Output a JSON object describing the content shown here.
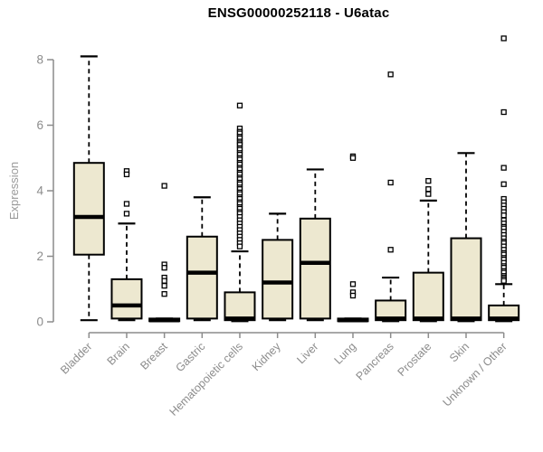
{
  "chart_data": {
    "type": "boxplot",
    "title": "ENSG00000252118 - U6atac",
    "ylabel": "Expression",
    "xlabel": "",
    "yticks": [
      0,
      2,
      4,
      6,
      8
    ],
    "ylim": [
      0,
      8.8
    ],
    "grid": false,
    "legend": "none",
    "categories": [
      "Bladder",
      "Brain",
      "Breast",
      "Gastric",
      "Hematopoietic cells",
      "Kidney",
      "Liver",
      "Lung",
      "Pancreas",
      "Prostate",
      "Skin",
      "Unknown / Other"
    ],
    "series": [
      {
        "name": "Bladder",
        "low": 0.05,
        "q1": 2.05,
        "median": 3.2,
        "q3": 4.85,
        "high": 8.1,
        "outliers": []
      },
      {
        "name": "Brain",
        "low": 0.05,
        "q1": 0.1,
        "median": 0.5,
        "q3": 1.3,
        "high": 3.0,
        "outliers": [
          4.6,
          4.5,
          3.6,
          3.3
        ]
      },
      {
        "name": "Breast",
        "low": 0.02,
        "q1": 0.02,
        "median": 0.05,
        "q3": 0.1,
        "high": 0.1,
        "outliers": [
          4.15,
          1.75,
          1.65,
          1.35,
          1.25,
          1.1,
          0.85
        ]
      },
      {
        "name": "Gastric",
        "low": 0.05,
        "q1": 0.1,
        "median": 1.5,
        "q3": 2.6,
        "high": 3.8,
        "outliers": []
      },
      {
        "name": "Hematopoietic cells",
        "low": 0.02,
        "q1": 0.05,
        "median": 0.1,
        "q3": 0.9,
        "high": 2.15,
        "outliers": [
          6.6,
          5.9,
          5.8,
          5.75,
          5.65,
          5.6,
          5.5,
          5.45,
          5.4,
          5.3,
          5.25,
          5.15,
          5.1,
          5.0,
          4.95,
          4.85,
          4.8,
          4.7,
          4.65,
          4.55,
          4.5,
          4.4,
          4.35,
          4.25,
          4.2,
          4.1,
          4.05,
          3.95,
          3.9,
          3.8,
          3.75,
          3.65,
          3.6,
          3.5,
          3.45,
          3.35,
          3.3,
          3.2,
          3.1,
          3.0,
          2.9,
          2.8,
          2.7,
          2.6,
          2.5,
          2.4,
          2.3
        ]
      },
      {
        "name": "Kidney",
        "low": 0.05,
        "q1": 0.1,
        "median": 1.2,
        "q3": 2.5,
        "high": 3.3,
        "outliers": []
      },
      {
        "name": "Liver",
        "low": 0.05,
        "q1": 0.1,
        "median": 1.8,
        "q3": 3.15,
        "high": 4.65,
        "outliers": []
      },
      {
        "name": "Lung",
        "low": 0.02,
        "q1": 0.02,
        "median": 0.05,
        "q3": 0.1,
        "high": 0.1,
        "outliers": [
          5.05,
          5.0,
          1.15,
          0.9,
          0.8
        ]
      },
      {
        "name": "Pancreas",
        "low": 0.02,
        "q1": 0.05,
        "median": 0.1,
        "q3": 0.65,
        "high": 1.35,
        "outliers": [
          7.55,
          4.25,
          2.2
        ]
      },
      {
        "name": "Prostate",
        "low": 0.02,
        "q1": 0.05,
        "median": 0.1,
        "q3": 1.5,
        "high": 3.7,
        "outliers": [
          4.3,
          4.05,
          3.9
        ]
      },
      {
        "name": "Skin",
        "low": 0.02,
        "q1": 0.05,
        "median": 0.1,
        "q3": 2.55,
        "high": 5.15,
        "outliers": []
      },
      {
        "name": "Unknown / Other",
        "low": 0.02,
        "q1": 0.05,
        "median": 0.1,
        "q3": 0.5,
        "high": 1.15,
        "outliers": [
          8.65,
          6.4,
          4.7,
          4.2,
          3.75,
          3.65,
          3.55,
          3.45,
          3.35,
          3.25,
          3.1,
          3.0,
          2.9,
          2.85,
          2.75,
          2.65,
          2.55,
          2.45,
          2.4,
          2.3,
          2.2,
          2.1,
          2.05,
          1.95,
          1.9,
          1.8,
          1.7,
          1.65,
          1.55,
          1.5,
          1.4,
          1.35,
          1.3,
          1.25
        ]
      }
    ],
    "colors": {
      "box_fill": "#EDE8D0",
      "box_border": "#000000",
      "median": "#000000",
      "whisker": "#000000",
      "outlier_stroke": "#000000",
      "outlier_fill": "#FFFFFF",
      "axis": "#8C8C8C",
      "tick_label": "#8C8C8C",
      "category_label": "#8C8C8C",
      "axis_title": "#9A9A9A",
      "title": "#000000",
      "background": "#FFFFFF"
    }
  }
}
